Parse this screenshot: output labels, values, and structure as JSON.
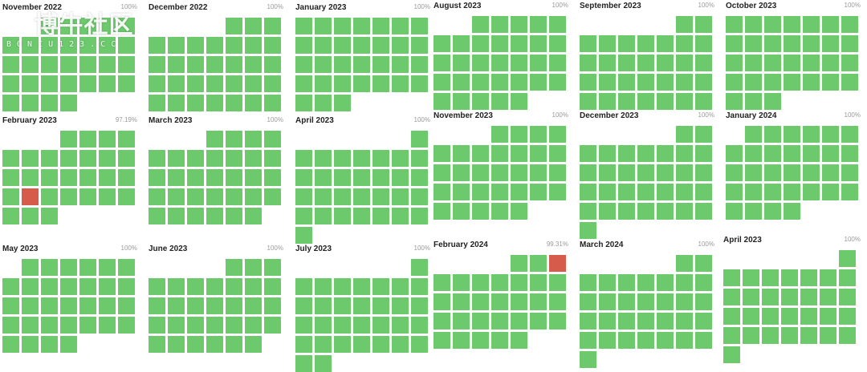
{
  "watermark": {
    "title": "博牛社区",
    "subtitle": "BONIU123.CC"
  },
  "months": [
    {
      "name": "November 2022",
      "uptime": "100%",
      "offset": 2,
      "days": 30,
      "down": []
    },
    {
      "name": "December 2022",
      "uptime": "100%",
      "offset": 4,
      "days": 31,
      "down": []
    },
    {
      "name": "January 2023",
      "uptime": "100%",
      "offset": 0,
      "days": 31,
      "down": []
    },
    {
      "name": "August 2023",
      "uptime": "100%",
      "offset": 2,
      "days": 31,
      "down": []
    },
    {
      "name": "September 2023",
      "uptime": "100%",
      "offset": 5,
      "days": 30,
      "down": []
    },
    {
      "name": "October 2023",
      "uptime": "100%",
      "offset": 0,
      "days": 31,
      "down": []
    },
    {
      "name": "February 2023",
      "uptime": "97.19%",
      "offset": 3,
      "days": 28,
      "down": [
        20
      ]
    },
    {
      "name": "March 2023",
      "uptime": "100%",
      "offset": 3,
      "days": 31,
      "down": []
    },
    {
      "name": "April 2023",
      "uptime": "100%",
      "offset": 6,
      "days": 30,
      "down": []
    },
    {
      "name": "November 2023",
      "uptime": "100%",
      "offset": 3,
      "days": 30,
      "down": []
    },
    {
      "name": "December 2023",
      "uptime": "100%",
      "offset": 5,
      "days": 31,
      "down": []
    },
    {
      "name": "January 2024",
      "uptime": "100%",
      "offset": 1,
      "days": 31,
      "down": []
    },
    {
      "name": "May 2023",
      "uptime": "100%",
      "offset": 1,
      "days": 31,
      "down": []
    },
    {
      "name": "June 2023",
      "uptime": "100%",
      "offset": 4,
      "days": 30,
      "down": []
    },
    {
      "name": "July 2023",
      "uptime": "100%",
      "offset": 6,
      "days": 31,
      "down": []
    },
    {
      "name": "February 2024",
      "uptime": "99.31%",
      "offset": 4,
      "days": 29,
      "down": [
        3
      ]
    },
    {
      "name": "March 2024",
      "uptime": "100%",
      "offset": 5,
      "days": 31,
      "down": []
    },
    {
      "name": "April 2023",
      "uptime": "100%",
      "offset": 6,
      "days": 30,
      "down": []
    }
  ],
  "colors": {
    "up": "#6cc96c",
    "down": "#d65b4a"
  }
}
